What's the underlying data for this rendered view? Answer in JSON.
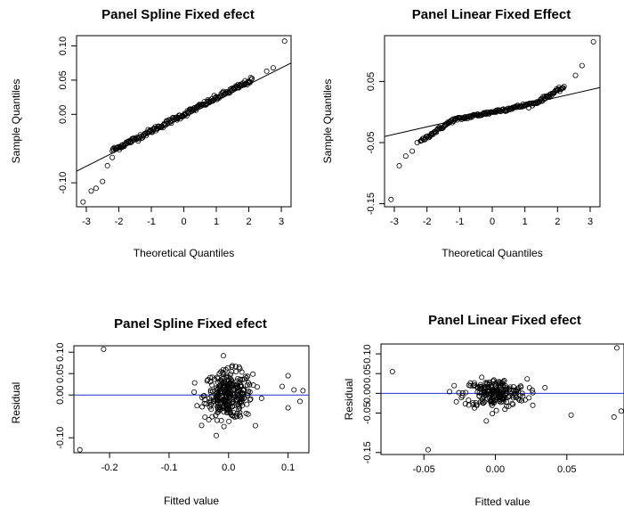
{
  "chart_data": [
    {
      "type": "scatter",
      "title": "Panel Spline Fixed efect",
      "xlabel": "Theoretical Quantiles",
      "ylabel": "Sample Quantiles",
      "xticks": [
        "-3",
        "-2",
        "-1",
        "0",
        "1",
        "2",
        "3"
      ],
      "yticks": [
        "-0.10",
        "0.00",
        "0.05",
        "0.10"
      ],
      "xlim": [
        -3.3,
        3.3
      ],
      "ylim": [
        -0.135,
        0.115
      ],
      "reference_line": {
        "x": [
          -3.3,
          3.3
        ],
        "y": [
          -0.083,
          0.075
        ]
      },
      "series": [
        {
          "x": [],
          "y": []
        }
      ],
      "highlight": {
        "x": [
          -3.1,
          -2.85,
          -2.7,
          -2.5,
          -2.35,
          -2.2,
          2.55,
          2.75,
          3.1
        ],
        "y": [
          -0.128,
          -0.112,
          -0.108,
          -0.098,
          -0.075,
          -0.063,
          0.063,
          0.068,
          0.107
        ]
      }
    },
    {
      "type": "scatter",
      "title": "Panel Linear Fixed Effect",
      "xlabel": "Theoretical Quantiles",
      "ylabel": "Sample Quantiles",
      "xticks": [
        "-3",
        "-2",
        "-1",
        "0",
        "1",
        "2",
        "3"
      ],
      "yticks": [
        "-0.15",
        "-0.05",
        "0.05"
      ],
      "xlim": [
        -3.3,
        3.3
      ],
      "ylim": [
        -0.155,
        0.125
      ],
      "reference_line": {
        "x": [
          -3.3,
          3.3
        ],
        "y": [
          -0.04,
          0.04
        ]
      },
      "series": [
        {
          "x": [],
          "y": []
        }
      ],
      "highlight": {
        "x": [
          -3.1,
          -2.85,
          -2.65,
          -2.45,
          -2.3,
          2.55,
          2.75,
          3.1
        ],
        "y": [
          -0.143,
          -0.088,
          -0.072,
          -0.064,
          -0.05,
          0.06,
          0.076,
          0.115
        ]
      }
    },
    {
      "type": "scatter",
      "title": "Panel Spline Fixed efect",
      "xlabel": "Fitted value",
      "ylabel": "Residual",
      "xticks": [
        "-0.2",
        "-0.1",
        "0.0",
        "0.1"
      ],
      "yticks": [
        "-0.10",
        "0.00",
        "0.05",
        "0.10"
      ],
      "xlim": [
        -0.26,
        0.135
      ],
      "ylim": [
        -0.135,
        0.115
      ],
      "hline": 0,
      "series": [
        {
          "x": [],
          "y": []
        }
      ],
      "highlight": {
        "x": [
          -0.25,
          -0.21,
          0.09,
          0.1,
          0.11,
          0.12,
          0.125,
          0.1
        ],
        "y": [
          -0.128,
          0.107,
          0.02,
          0.045,
          0.012,
          -0.015,
          0.01,
          -0.03
        ]
      }
    },
    {
      "type": "scatter",
      "title": "Panel Linear Fixed efect",
      "xlabel": "Fitted value",
      "ylabel": "Residual",
      "xticks": [
        "-0.05",
        "0.00",
        "0.05"
      ],
      "yticks": [
        "-0.15",
        "-0.05",
        "0.00",
        "0.05",
        "0.10"
      ],
      "xlim": [
        -0.08,
        0.09
      ],
      "ylim": [
        -0.155,
        0.125
      ],
      "hline": 0,
      "series": [
        {
          "x": [],
          "y": []
        }
      ],
      "highlight": {
        "x": [
          -0.072,
          -0.047,
          0.053,
          0.083,
          0.085,
          0.088
        ],
        "y": [
          0.055,
          -0.143,
          -0.055,
          -0.06,
          0.115,
          -0.045
        ]
      }
    }
  ]
}
